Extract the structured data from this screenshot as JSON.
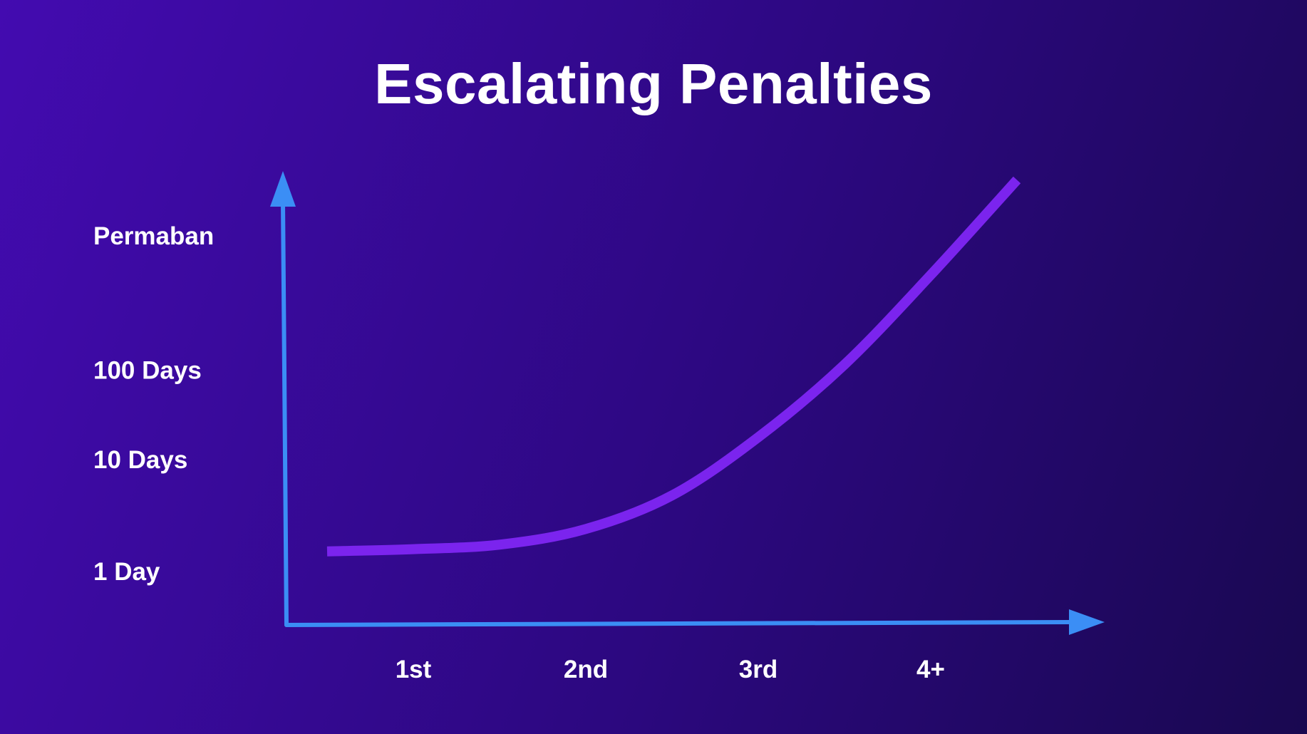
{
  "chart_data": {
    "type": "line",
    "title": "Escalating Penalties",
    "xlabel": "",
    "ylabel": "",
    "categories": [
      "1st",
      "2nd",
      "3rd",
      "4+"
    ],
    "y_tick_labels": [
      "1 Day",
      "10 Days",
      "100 Days",
      "Permaban"
    ],
    "y_scale": "log",
    "grid": false,
    "legend": "none",
    "series": [
      {
        "curve_x": [
          0.5,
          1.0,
          1.5,
          2.0,
          2.5,
          3.0,
          3.5,
          4.0,
          4.5
        ],
        "curve_y": [
          0.18,
          0.2,
          0.24,
          0.38,
          0.68,
          1.2,
          1.85,
          2.65,
          3.5
        ]
      }
    ],
    "colors": {
      "axis": "#3b8ef5",
      "line": "#7b24ee"
    }
  }
}
